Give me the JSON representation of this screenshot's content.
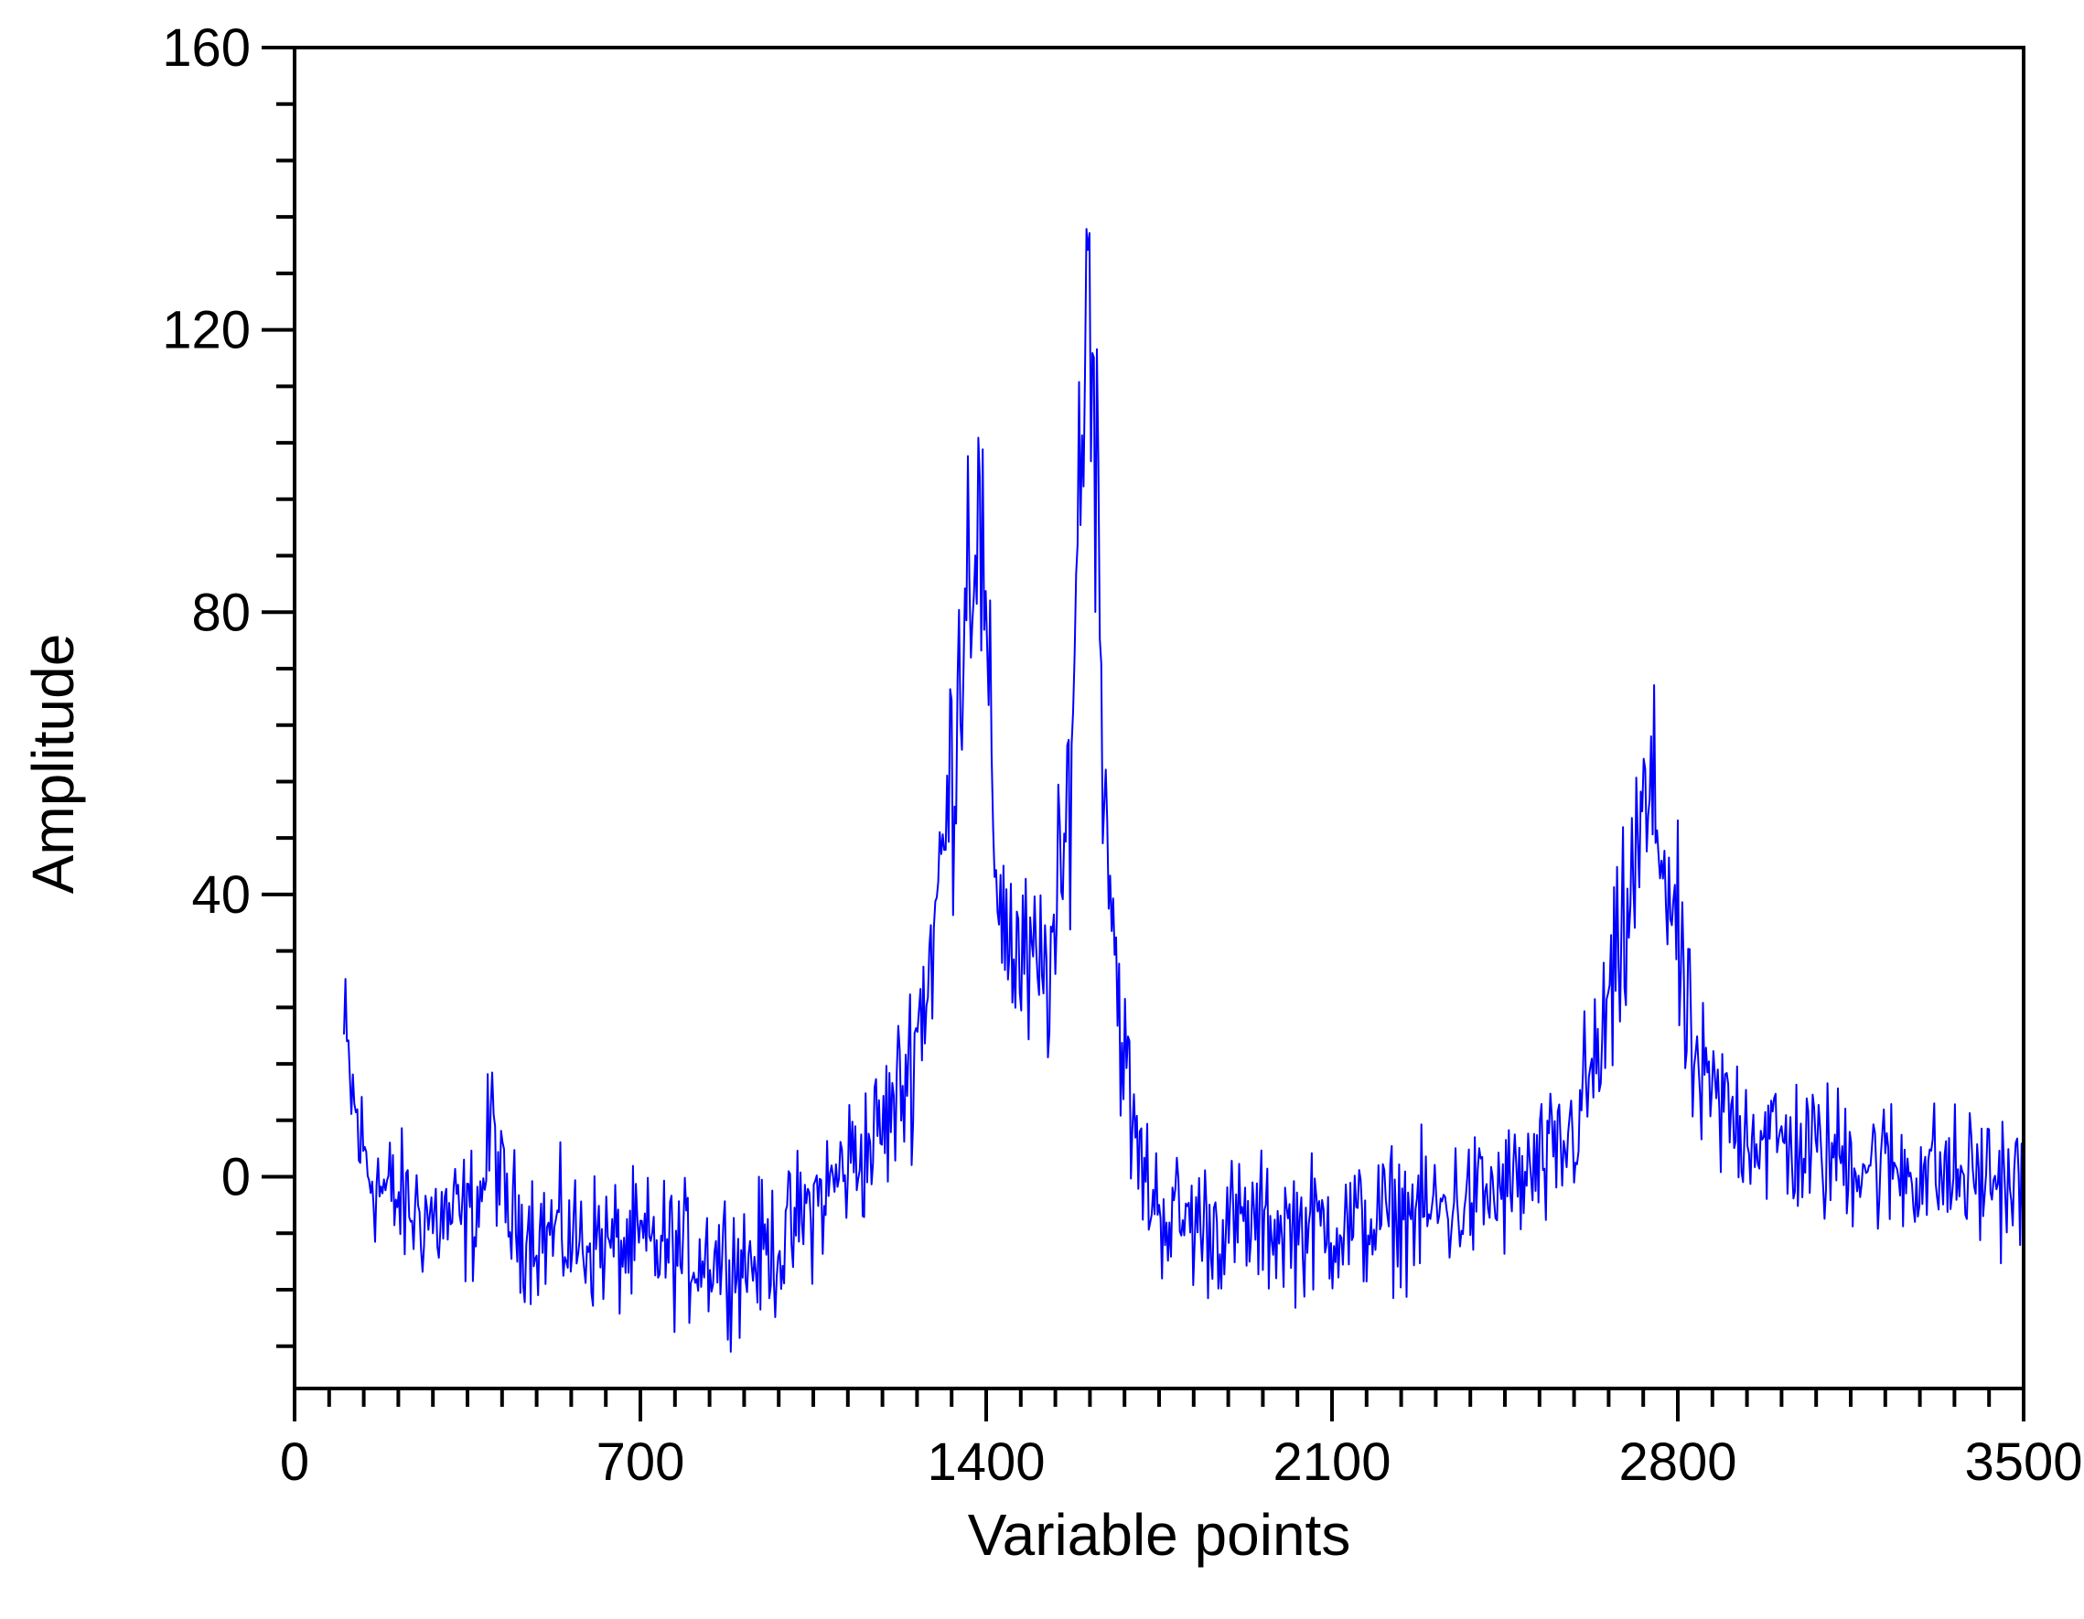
{
  "colors": {
    "series": "#0000ff",
    "axes": "#000000",
    "background": "#ffffff"
  },
  "chart_data": {
    "type": "line",
    "title": "",
    "xlabel": "Variable points",
    "ylabel": "Amplitude",
    "xlim": [
      0,
      3500
    ],
    "ylim": [
      -30,
      160
    ],
    "x_ticks": [
      0,
      700,
      1400,
      2100,
      2800,
      3500
    ],
    "x_tick_labels": [
      "0",
      "700",
      "1400",
      "2100",
      "2800",
      "3500"
    ],
    "x_minor_step": 70,
    "y_ticks": [
      0,
      40,
      80,
      120,
      160
    ],
    "y_tick_labels": [
      "0",
      "40",
      "80",
      "120",
      "160"
    ],
    "y_minor_step": 8,
    "grid": false,
    "legend": "none",
    "noise_amplitude": 6,
    "series": [
      {
        "x": [
          100,
          110,
          120,
          130,
          140,
          150,
          160,
          180,
          200,
          220,
          240,
          260,
          280,
          300,
          320,
          340,
          360,
          380,
          390,
          400,
          410,
          420,
          430,
          440,
          460,
          480,
          500,
          520,
          540,
          560,
          580,
          600,
          620,
          640,
          660,
          680,
          700,
          720,
          740,
          760,
          780,
          800,
          820,
          840,
          860,
          880,
          900,
          920,
          940,
          960,
          980,
          1000,
          1020,
          1040,
          1060,
          1080,
          1100,
          1120,
          1140,
          1160,
          1180,
          1200,
          1220,
          1240,
          1260,
          1280,
          1300,
          1320,
          1340,
          1350,
          1360,
          1370,
          1380,
          1390,
          1400,
          1410,
          1420,
          1440,
          1460,
          1480,
          1500,
          1520,
          1540,
          1560,
          1570,
          1580,
          1590,
          1600,
          1610,
          1620,
          1630,
          1640,
          1650,
          1660,
          1670,
          1680,
          1690,
          1700,
          1720,
          1740,
          1760,
          1780,
          1800,
          1850,
          1900,
          1950,
          2000,
          2050,
          2100,
          2150,
          2200,
          2250,
          2300,
          2350,
          2400,
          2450,
          2500,
          2550,
          2580,
          2600,
          2620,
          2640,
          2660,
          2680,
          2700,
          2720,
          2740,
          2760,
          2780,
          2800,
          2820,
          2850,
          2900,
          2950,
          3000,
          3050,
          3100,
          3150,
          3200,
          3250,
          3300,
          3350,
          3400,
          3450,
          3500
        ],
        "values": [
          19,
          14,
          10,
          6,
          3,
          1,
          0,
          -2,
          -3,
          -4,
          -5,
          -5,
          -6,
          -6,
          -6,
          -6,
          -5,
          -2,
          3,
          8,
          3,
          -3,
          -5,
          -6,
          -7,
          -7,
          -8,
          -8,
          -8,
          -9,
          -9,
          -9,
          -9,
          -10,
          -10,
          -10,
          -10,
          -10,
          -10,
          -10,
          -11,
          -11,
          -11,
          -11,
          -11,
          -11,
          -12,
          -12,
          -11,
          -10,
          -10,
          -9,
          -6,
          -5,
          -3,
          -2,
          0,
          2,
          3,
          4,
          6,
          8,
          11,
          15,
          21,
          28,
          38,
          50,
          66,
          78,
          87,
          92,
          93,
          88,
          72,
          56,
          45,
          36,
          31,
          29,
          28,
          29,
          33,
          45,
          60,
          80,
          100,
          122,
          128,
          112,
          80,
          60,
          45,
          33,
          24,
          17,
          10,
          5,
          0,
          -3,
          -5,
          -6,
          -6,
          -7,
          -7,
          -7,
          -7,
          -7,
          -7,
          -7,
          -6,
          -5,
          -5,
          -4,
          -3,
          -2,
          0,
          2,
          5,
          9,
          13,
          17,
          23,
          29,
          38,
          46,
          52,
          50,
          43,
          32,
          20,
          12,
          9,
          7,
          5,
          4,
          3,
          3,
          2,
          1,
          1,
          0,
          0,
          0,
          -2
        ]
      }
    ]
  }
}
